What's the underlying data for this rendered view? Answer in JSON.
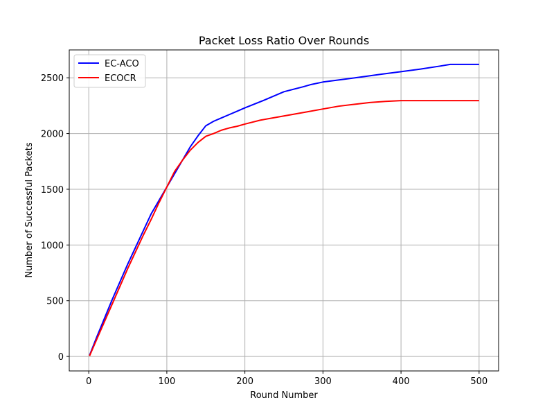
{
  "chart_data": {
    "type": "line",
    "title": "Packet Loss Ratio Over Rounds",
    "xlabel": "Round Number",
    "ylabel": "Number of Successful Packets",
    "xlim": [
      -25,
      525
    ],
    "ylim": [
      -130,
      2750
    ],
    "xticks": [
      0,
      100,
      200,
      300,
      400,
      500
    ],
    "yticks": [
      0,
      500,
      1000,
      1500,
      2000,
      2500
    ],
    "xtick_labels": [
      "0",
      "100",
      "200",
      "300",
      "400",
      "500"
    ],
    "ytick_labels": [
      "0",
      "500",
      "1000",
      "1500",
      "2000",
      "2500"
    ],
    "grid": true,
    "legend_position": "top-left",
    "series": [
      {
        "name": "EC-ACO",
        "color": "#0000ff",
        "x": [
          1,
          10,
          20,
          30,
          40,
          50,
          60,
          70,
          80,
          90,
          100,
          110,
          120,
          130,
          140,
          150,
          160,
          170,
          180,
          190,
          200,
          225,
          250,
          275,
          285,
          300,
          325,
          350,
          375,
          400,
          425,
          450,
          463,
          480,
          500
        ],
        "y": [
          10,
          170,
          340,
          510,
          670,
          830,
          980,
          1130,
          1280,
          1400,
          1520,
          1640,
          1760,
          1880,
          1980,
          2070,
          2110,
          2140,
          2170,
          2200,
          2230,
          2300,
          2375,
          2420,
          2440,
          2462,
          2485,
          2508,
          2532,
          2555,
          2578,
          2605,
          2620,
          2620,
          2620
        ]
      },
      {
        "name": "ECOCR",
        "color": "#ff0000",
        "x": [
          1,
          10,
          20,
          30,
          40,
          50,
          60,
          70,
          80,
          90,
          100,
          110,
          120,
          130,
          140,
          150,
          160,
          170,
          180,
          190,
          200,
          220,
          240,
          260,
          280,
          300,
          320,
          340,
          360,
          380,
          400,
          450,
          500
        ],
        "y": [
          5,
          150,
          310,
          470,
          630,
          790,
          940,
          1090,
          1230,
          1380,
          1520,
          1660,
          1760,
          1850,
          1920,
          1975,
          2000,
          2030,
          2050,
          2065,
          2085,
          2120,
          2145,
          2170,
          2195,
          2220,
          2245,
          2262,
          2278,
          2288,
          2295,
          2295,
          2295
        ]
      }
    ]
  }
}
